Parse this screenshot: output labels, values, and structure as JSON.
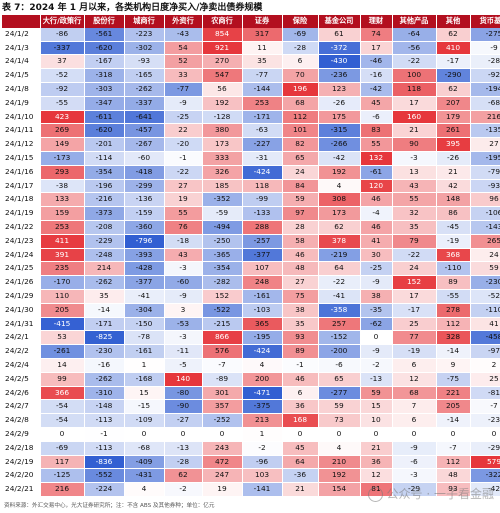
{
  "title": "表 7：2024 年 1 月以来，各类机构日度净买入/净卖出债券规模",
  "note": "资料来源：外汇交易中心，光大证券研究所；注：不含 ABS 及其他券种；单位：亿元",
  "watermark": "公众号 · 一子看金融",
  "colors": {
    "header_bg": "#b30f1f",
    "header_text": "#ffffff",
    "positive_scale": "#e63940",
    "negative_scale": "#3366cc"
  },
  "table": {
    "headers": [
      "",
      "大行/政策行",
      "股份行",
      "城商行",
      "外资行",
      "农商行",
      "证券",
      "保险",
      "基金公司",
      "理财",
      "其他产品",
      "其他",
      "货币基金"
    ],
    "rows": [
      [
        "24/1/2",
        "-86",
        "-561",
        "-223",
        "-43",
        "854",
        "317",
        "-69",
        "61",
        "74",
        "-64",
        "62",
        "-275"
      ],
      [
        "24/1/3",
        "-337",
        "-620",
        "-302",
        "54",
        "921",
        "11",
        "-28",
        "-372",
        "17",
        "-56",
        "410",
        "-9"
      ],
      [
        "24/1/4",
        "37",
        "-167",
        "-93",
        "52",
        "270",
        "35",
        "6",
        "-430",
        "-46",
        "-22",
        "-17",
        "-28"
      ],
      [
        "24/1/5",
        "-52",
        "-318",
        "-165",
        "33",
        "547",
        "-77",
        "70",
        "-236",
        "-16",
        "100",
        "-290",
        "-92"
      ],
      [
        "24/1/8",
        "-92",
        "-303",
        "-262",
        "-77",
        "56",
        "-144",
        "196",
        "123",
        "-42",
        "118",
        "62",
        "-194"
      ],
      [
        "24/1/9",
        "-55",
        "-347",
        "-337",
        "-9",
        "192",
        "253",
        "68",
        "-26",
        "45",
        "17",
        "207",
        "-68"
      ],
      [
        "24/1/10",
        "423",
        "-611",
        "-641",
        "-25",
        "-128",
        "-171",
        "112",
        "175",
        "-6",
        "160",
        "179",
        "216"
      ],
      [
        "24/1/11",
        "269",
        "-620",
        "-457",
        "22",
        "380",
        "-63",
        "101",
        "-315",
        "83",
        "21",
        "261",
        "-135"
      ],
      [
        "24/1/12",
        "149",
        "-201",
        "-267",
        "-20",
        "173",
        "-227",
        "82",
        "-266",
        "55",
        "90",
        "395",
        "27"
      ],
      [
        "24/1/15",
        "-173",
        "-114",
        "-60",
        "-1",
        "333",
        "-31",
        "65",
        "-42",
        "132",
        "-3",
        "-26",
        "-195"
      ],
      [
        "24/1/16",
        "293",
        "-354",
        "-418",
        "-22",
        "326",
        "-424",
        "24",
        "192",
        "-61",
        "13",
        "21",
        "-79"
      ],
      [
        "24/1/17",
        "-38",
        "-196",
        "-299",
        "27",
        "185",
        "118",
        "84",
        "4",
        "120",
        "43",
        "42",
        "-93"
      ],
      [
        "24/1/18",
        "133",
        "-216",
        "-136",
        "19",
        "-352",
        "-99",
        "59",
        "308",
        "46",
        "55",
        "148",
        "96"
      ],
      [
        "24/1/19",
        "159",
        "-373",
        "-159",
        "55",
        "-59",
        "-133",
        "97",
        "173",
        "-4",
        "32",
        "86",
        "-106"
      ],
      [
        "24/1/22",
        "253",
        "-208",
        "-360",
        "76",
        "-494",
        "288",
        "28",
        "62",
        "46",
        "35",
        "-45",
        "-143"
      ],
      [
        "24/1/23",
        "411",
        "-229",
        "-796",
        "-18",
        "-250",
        "-257",
        "58",
        "378",
        "41",
        "79",
        "-19",
        "265"
      ],
      [
        "24/1/24",
        "391",
        "-248",
        "-393",
        "43",
        "-365",
        "-377",
        "46",
        "-219",
        "30",
        "-22",
        "368",
        "24"
      ],
      [
        "24/1/25",
        "235",
        "214",
        "-428",
        "-3",
        "-354",
        "107",
        "48",
        "64",
        "-25",
        "24",
        "-110",
        "59"
      ],
      [
        "24/1/26",
        "-170",
        "-262",
        "-377",
        "-60",
        "-282",
        "248",
        "27",
        "-22",
        "-9",
        "152",
        "89",
        "-230"
      ],
      [
        "24/1/29",
        "110",
        "35",
        "-41",
        "-9",
        "152",
        "-161",
        "75",
        "-41",
        "38",
        "17",
        "-55",
        "-52"
      ],
      [
        "24/1/30",
        "205",
        "-14",
        "-304",
        "3",
        "-522",
        "-103",
        "38",
        "-358",
        "-35",
        "-17",
        "278",
        "-110"
      ],
      [
        "24/1/31",
        "-415",
        "-171",
        "-150",
        "-53",
        "-215",
        "365",
        "35",
        "257",
        "-62",
        "25",
        "112",
        "41"
      ],
      [
        "24/2/1",
        "53",
        "-825",
        "-78",
        "-3",
        "866",
        "-195",
        "93",
        "-152",
        "0",
        "77",
        "328",
        "-458"
      ],
      [
        "24/2/2",
        "-261",
        "-230",
        "-161",
        "-11",
        "576",
        "-424",
        "89",
        "-200",
        "-9",
        "-19",
        "-14",
        "-97"
      ],
      [
        "24/2/4",
        "14",
        "-16",
        "1",
        "-5",
        "-7",
        "4",
        "-1",
        "-6",
        "-2",
        "6",
        "9",
        "2"
      ],
      [
        "24/2/5",
        "99",
        "-262",
        "-168",
        "140",
        "-89",
        "200",
        "46",
        "65",
        "-13",
        "12",
        "-75",
        "25"
      ],
      [
        "24/2/6",
        "366",
        "-310",
        "15",
        "-80",
        "301",
        "-471",
        "6",
        "-277",
        "59",
        "68",
        "221",
        "-81"
      ],
      [
        "24/2/7",
        "-54",
        "-148",
        "-15",
        "-90",
        "357",
        "-375",
        "36",
        "59",
        "15",
        "7",
        "205",
        "-7"
      ],
      [
        "24/2/8",
        "-54",
        "-113",
        "-109",
        "-27",
        "-252",
        "213",
        "168",
        "73",
        "10",
        "6",
        "-14",
        "-23"
      ],
      [
        "24/2/9",
        "0",
        "-1",
        "0",
        "0",
        "0",
        "1",
        "0",
        "0",
        "0",
        "0",
        "0",
        "0"
      ],
      [
        "24/2/18",
        "-69",
        "-113",
        "-68",
        "-13",
        "243",
        "-2",
        "45",
        "4",
        "21",
        "-9",
        "-7",
        "-29"
      ],
      [
        "24/2/19",
        "117",
        "-836",
        "-409",
        "-28",
        "472",
        "-96",
        "64",
        "210",
        "36",
        "-6",
        "112",
        "579"
      ],
      [
        "24/2/20",
        "-125",
        "-552",
        "-431",
        "62",
        "247",
        "103",
        "-36",
        "192",
        "12",
        "-3",
        "48",
        "-322"
      ],
      [
        "24/2/21",
        "216",
        "-224",
        "4",
        "-2",
        "19",
        "-141",
        "21",
        "154",
        "81",
        "-29",
        "93",
        "-42"
      ]
    ]
  }
}
